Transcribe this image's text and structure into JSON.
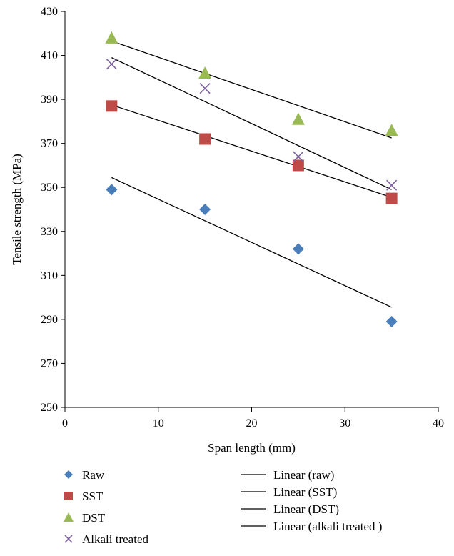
{
  "chart_data": {
    "type": "scatter",
    "xlabel": "Span length (mm)",
    "ylabel": "Tensile strength (MPa)",
    "xlim": [
      0,
      40
    ],
    "ylim": [
      250,
      430
    ],
    "xticks": [
      0,
      10,
      20,
      30,
      40
    ],
    "yticks": [
      250,
      270,
      290,
      310,
      330,
      350,
      370,
      390,
      410,
      430
    ],
    "grid": false,
    "legend_position": "bottom",
    "series": [
      {
        "name": "Raw",
        "marker": "diamond",
        "color": "#4a7ebb",
        "x": [
          5,
          15,
          25,
          35
        ],
        "y": [
          349,
          340,
          322,
          289
        ]
      },
      {
        "name": "SST",
        "marker": "square",
        "color": "#be4b48",
        "x": [
          5,
          15,
          25,
          35
        ],
        "y": [
          387,
          372,
          360,
          345
        ]
      },
      {
        "name": "DST",
        "marker": "triangle",
        "color": "#98b954",
        "x": [
          5,
          15,
          25,
          35
        ],
        "y": [
          418,
          402,
          381,
          376
        ]
      },
      {
        "name": "Alkali treated",
        "marker": "x",
        "color": "#7d60a0",
        "x": [
          5,
          15,
          25,
          35
        ],
        "y": [
          406,
          395,
          364,
          351
        ]
      }
    ],
    "trendlines": [
      {
        "name": "Linear (raw)",
        "type": "linear",
        "color": "#000000",
        "x": [
          5,
          35
        ],
        "y": [
          354.5,
          295.5
        ]
      },
      {
        "name": "Linear (SST)",
        "type": "linear",
        "color": "#000000",
        "x": [
          5,
          35
        ],
        "y": [
          387.5,
          345.5
        ]
      },
      {
        "name": "Linear (DST)",
        "type": "linear",
        "color": "#000000",
        "x": [
          5,
          35
        ],
        "y": [
          416.5,
          372.5
        ]
      },
      {
        "name": "Linear (alkali treated )",
        "type": "linear",
        "color": "#000000",
        "x": [
          5,
          35
        ],
        "y": [
          409,
          349
        ]
      }
    ]
  }
}
